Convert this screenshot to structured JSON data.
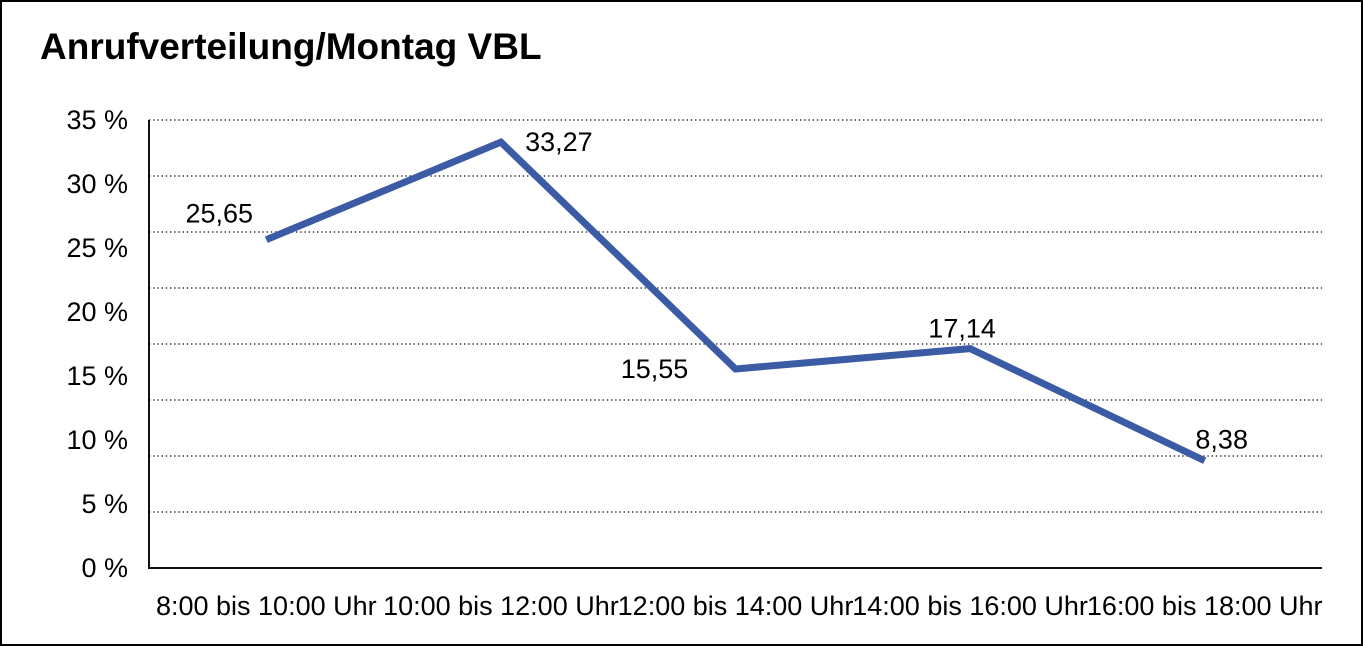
{
  "chart_data": {
    "type": "line",
    "title": "Anrufverteilung/Montag VBL",
    "categories": [
      "8:00 bis 10:00 Uhr",
      "10:00 bis 12:00 Uhr",
      "12:00 bis 14:00 Uhr",
      "14:00 bis 16:00 Uhr",
      "16:00 bis 18:00 Uhr"
    ],
    "values": [
      25.65,
      33.27,
      15.55,
      17.14,
      8.38
    ],
    "data_labels": [
      "25,65",
      "33,27",
      "15,55",
      "17,14",
      "8,38"
    ],
    "data_label_positions": [
      "above-left",
      "right",
      "left",
      "above",
      "above-right"
    ],
    "y_ticks": [
      "35 %",
      "30 %",
      "25 %",
      "20 %",
      "15 %",
      "10 %",
      "5 %",
      "0 %"
    ],
    "ylim": [
      0,
      35
    ],
    "y_tick_step": 5,
    "xlabel": "",
    "ylabel": "",
    "legend": "none",
    "grid": "horizontal-dotted",
    "grid_divisions": 8,
    "line_color": "#3B5BA5",
    "axis_color": "#111111",
    "grid_color": "#3a3a3a",
    "text_color": "#000000"
  }
}
